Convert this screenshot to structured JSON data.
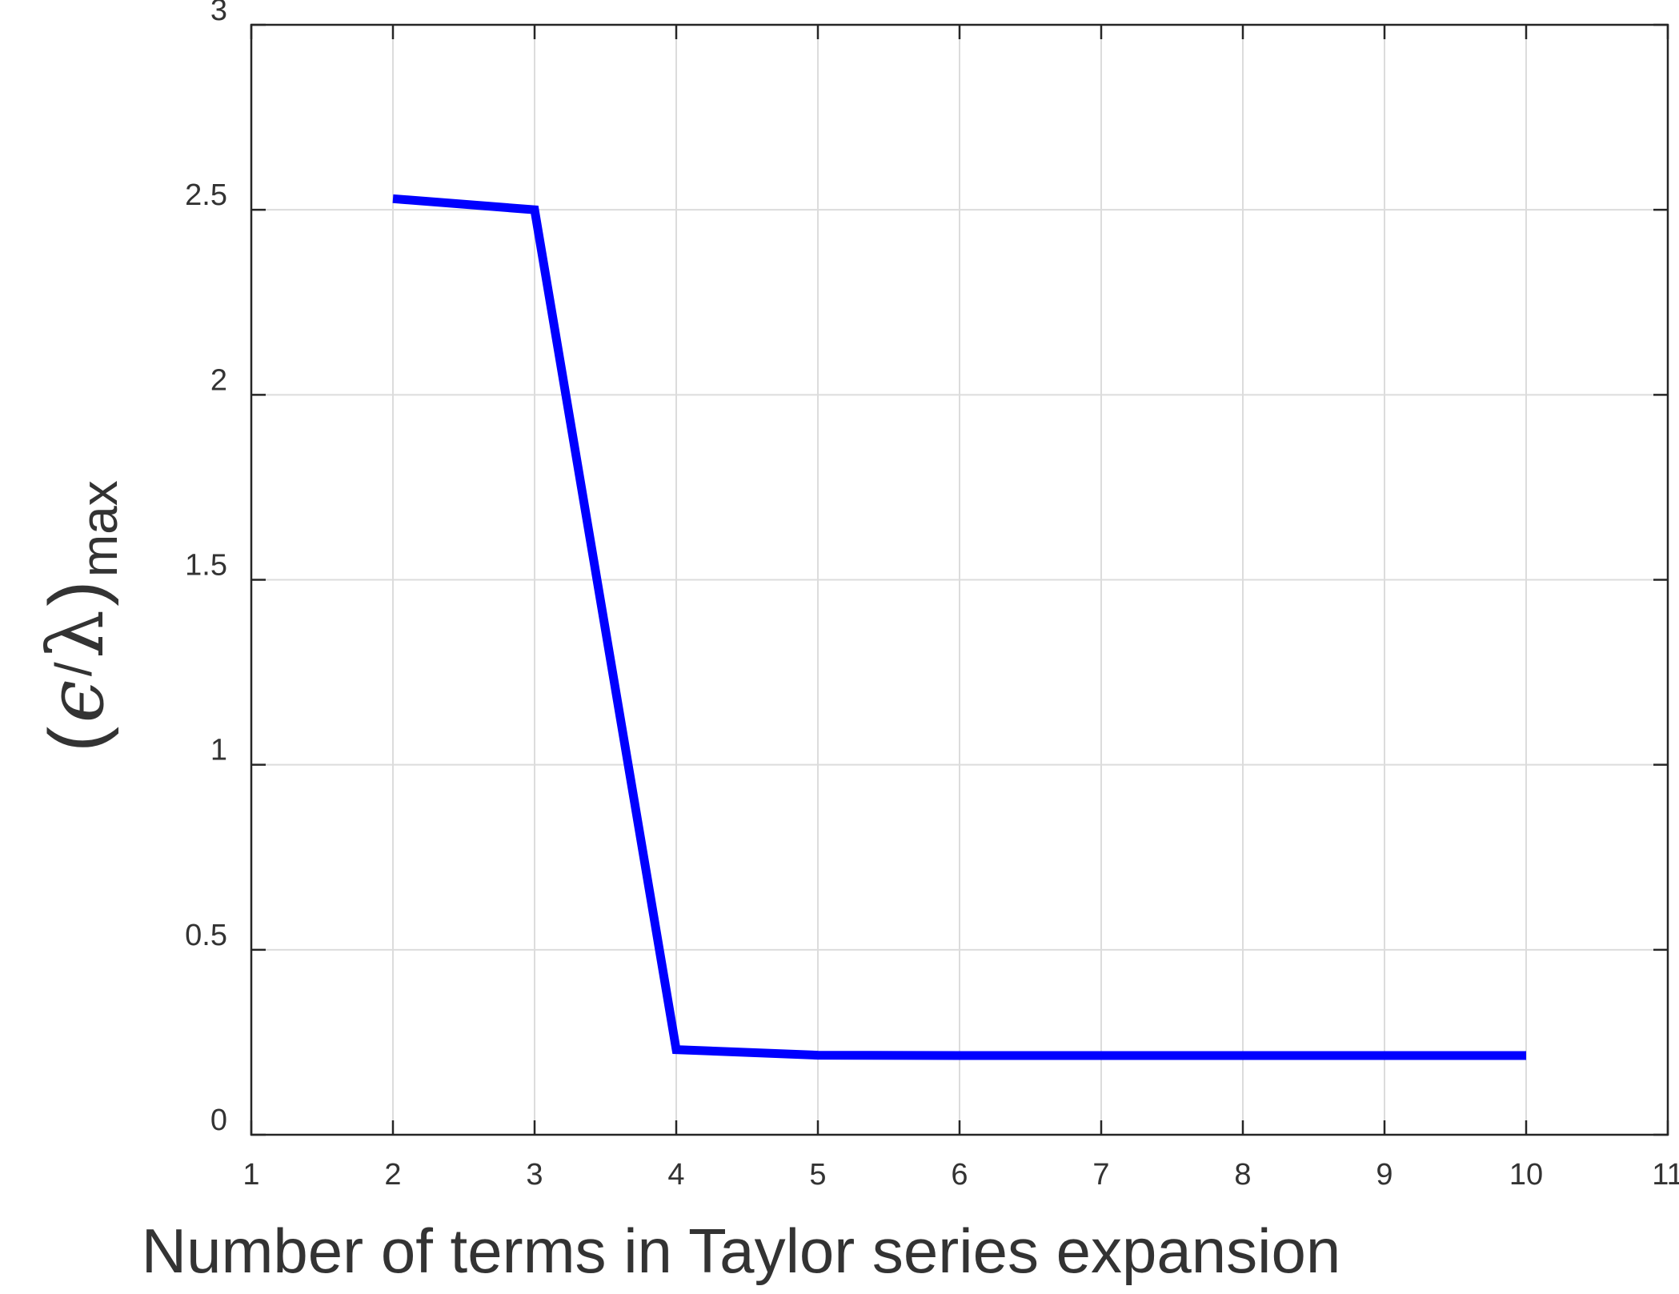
{
  "chart_data": {
    "type": "line",
    "title": "",
    "xlabel": "Number of terms in Taylor series expansion",
    "ylabel": {
      "open_paren": "(",
      "epsilon": "ϵ",
      "slash": "/",
      "lambda": "λ",
      "close_paren": ")",
      "subscript": "max"
    },
    "xlim": [
      1,
      11
    ],
    "ylim": [
      0,
      3
    ],
    "x_ticks": [
      "1",
      "2",
      "3",
      "4",
      "5",
      "6",
      "7",
      "8",
      "9",
      "10",
      "11"
    ],
    "y_ticks": [
      "0",
      "0.5",
      "1",
      "1.5",
      "2",
      "2.5",
      "3"
    ],
    "grid": true,
    "series": [
      {
        "color": "#0000ff",
        "x": [
          2,
          3,
          4,
          5,
          6,
          7,
          8,
          9,
          10
        ],
        "y": [
          2.53,
          2.5,
          0.23,
          0.215,
          0.214,
          0.214,
          0.214,
          0.214,
          0.214
        ]
      }
    ]
  }
}
